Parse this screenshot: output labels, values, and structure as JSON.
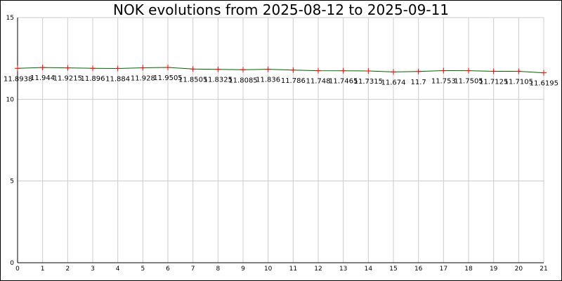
{
  "chart_data": {
    "type": "line",
    "title": "NOK evolutions from 2025-08-12 to 2025-09-11",
    "xlabel": "",
    "ylabel": "",
    "x": [
      0,
      1,
      2,
      3,
      4,
      5,
      6,
      7,
      8,
      9,
      10,
      11,
      12,
      13,
      14,
      15,
      16,
      17,
      18,
      19,
      20,
      21
    ],
    "values": [
      11.8938,
      11.944,
      11.9215,
      11.896,
      11.884,
      11.928,
      11.9505,
      11.8505,
      11.8325,
      11.8085,
      11.836,
      11.786,
      11.748,
      11.7465,
      11.7315,
      11.674,
      11.7,
      11.753,
      11.7505,
      11.7125,
      11.7105,
      11.6195
    ],
    "value_labels": [
      "11.8938",
      "11.944",
      "11.9215",
      "11.896",
      "11.884",
      "11.928",
      "11.9505",
      "11.8505",
      "11.8325",
      "11.8085",
      "11.836",
      "11.786",
      "11.748",
      "11.7465",
      "11.7315",
      "11.674",
      "11.7",
      "11.753",
      "11.7505",
      "11.7125",
      "11.7105",
      "11.6195"
    ],
    "x_ticks": [
      "0",
      "1",
      "2",
      "3",
      "4",
      "5",
      "6",
      "7",
      "8",
      "9",
      "10",
      "11",
      "12",
      "13",
      "14",
      "15",
      "16",
      "17",
      "18",
      "19",
      "20",
      "21"
    ],
    "y_ticks": [
      0,
      5,
      10,
      15
    ],
    "y_tick_labels": [
      "0",
      "5",
      "10",
      "15"
    ],
    "xlim": [
      0,
      21
    ],
    "ylim": [
      0,
      15
    ],
    "grid": true,
    "colors": {
      "line": "#006400",
      "marker": "#ff0000",
      "grid": "#cccccc",
      "axis": "#000000"
    }
  }
}
